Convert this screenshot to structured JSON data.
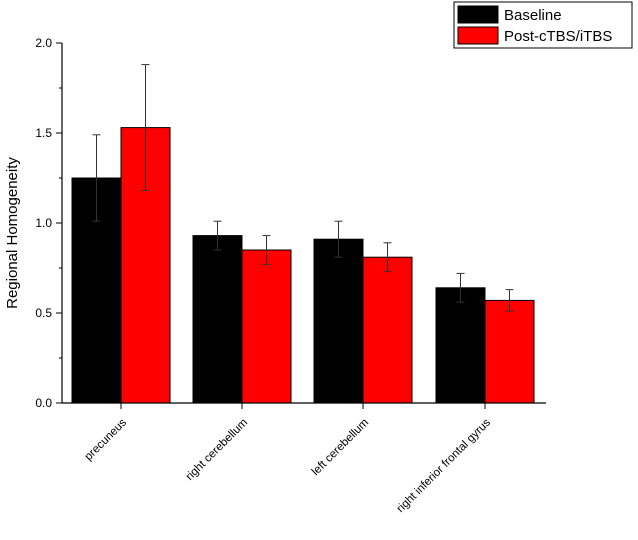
{
  "chart_data": {
    "type": "bar",
    "title": "",
    "xlabel": "",
    "ylabel": "Regional Homogeneity",
    "ylim": [
      0.0,
      2.0
    ],
    "yticks": [
      "0.0",
      "0.5",
      "1.0",
      "1.5",
      "2.0"
    ],
    "categories": [
      "precuneus",
      "right cerebellum",
      "left cerebellum",
      "right inferior frontal gyrus"
    ],
    "series": [
      {
        "name": "Baseline",
        "color": "#000000",
        "values": [
          1.25,
          0.93,
          0.91,
          0.64
        ],
        "errors": [
          0.24,
          0.08,
          0.1,
          0.08
        ]
      },
      {
        "name": "Post-cTBS/iTBS",
        "color": "#ff0000",
        "values": [
          1.53,
          0.85,
          0.81,
          0.57
        ],
        "errors": [
          0.35,
          0.08,
          0.08,
          0.06
        ]
      }
    ],
    "grid": false,
    "legend_position": "top-right"
  }
}
